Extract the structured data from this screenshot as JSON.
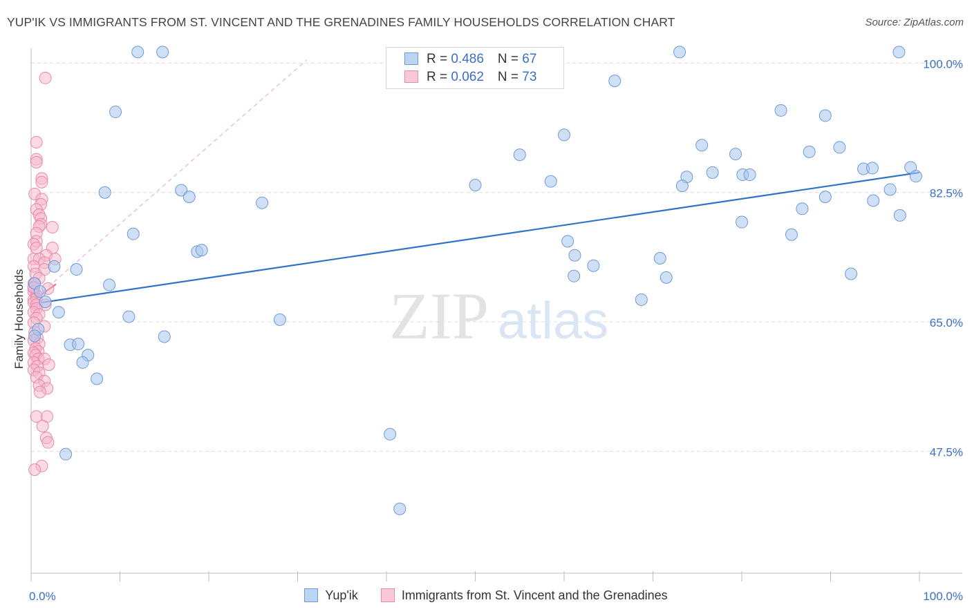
{
  "title": "YUP'IK VS IMMIGRANTS FROM ST. VINCENT AND THE GRENADINES FAMILY HOUSEHOLDS CORRELATION CHART",
  "source": "Source: ZipAtlas.com",
  "legend": {
    "series1": {
      "r_label": "R = ",
      "r_value": "0.486",
      "n_label": "N = ",
      "n_value": "67"
    },
    "series2": {
      "r_label": "R = ",
      "r_value": "0.062",
      "n_label": "N = ",
      "n_value": "73"
    }
  },
  "colors": {
    "blue": "#a8c6ee",
    "blue_edge": "#6d9ad8",
    "blue_line": "#2f72c9",
    "pink": "#f7b6cc",
    "pink_edge": "#e889a8",
    "pink_line": "#e8668f",
    "axis_text": "#3a6fc4"
  },
  "chart_data": {
    "type": "scatter",
    "title": "YUP'IK VS IMMIGRANTS FROM ST. VINCENT AND THE GRENADINES FAMILY HOUSEHOLDS CORRELATION CHART",
    "xlabel": "",
    "ylabel": "Family Households",
    "xlim": [
      0,
      100
    ],
    "ylim": [
      31,
      102
    ],
    "x_ticks": [
      "0.0%",
      "100.0%"
    ],
    "y_ticks": [
      {
        "value": 100,
        "label": "100.0%"
      },
      {
        "value": 82.5,
        "label": "82.5%"
      },
      {
        "value": 65,
        "label": "65.0%"
      },
      {
        "value": 47.5,
        "label": "47.5%"
      }
    ],
    "grid": true,
    "legend_position": "top-center",
    "series": [
      {
        "name": "Yup'ik",
        "points": [
          [
            12.0,
            101.5
          ],
          [
            14.8,
            101.5
          ],
          [
            73.0,
            101.5
          ],
          [
            97.7,
            101.5
          ],
          [
            9.5,
            93.4
          ],
          [
            65.7,
            97.6
          ],
          [
            84.4,
            93.6
          ],
          [
            89.4,
            92.9
          ],
          [
            60.0,
            90.3
          ],
          [
            55.0,
            87.6
          ],
          [
            75.5,
            88.9
          ],
          [
            79.3,
            87.7
          ],
          [
            91.0,
            88.6
          ],
          [
            87.6,
            88.0
          ],
          [
            99.0,
            85.9
          ],
          [
            93.7,
            85.7
          ],
          [
            94.7,
            85.8
          ],
          [
            99.6,
            84.7
          ],
          [
            73.8,
            84.6
          ],
          [
            76.7,
            85.2
          ],
          [
            80.1,
            84.9
          ],
          [
            80.9,
            84.9
          ],
          [
            50.0,
            83.5
          ],
          [
            58.5,
            84.0
          ],
          [
            73.3,
            83.4
          ],
          [
            89.4,
            81.9
          ],
          [
            94.8,
            81.4
          ],
          [
            96.7,
            82.9
          ],
          [
            8.3,
            82.5
          ],
          [
            16.9,
            82.8
          ],
          [
            17.8,
            81.9
          ],
          [
            26.0,
            81.1
          ],
          [
            86.8,
            80.3
          ],
          [
            97.8,
            79.4
          ],
          [
            80.0,
            78.5
          ],
          [
            85.6,
            76.8
          ],
          [
            11.5,
            76.9
          ],
          [
            60.4,
            75.9
          ],
          [
            18.7,
            74.5
          ],
          [
            19.2,
            74.7
          ],
          [
            61.2,
            74.0
          ],
          [
            70.8,
            73.6
          ],
          [
            63.3,
            72.6
          ],
          [
            2.6,
            72.5
          ],
          [
            5.1,
            72.1
          ],
          [
            61.1,
            71.2
          ],
          [
            71.5,
            71.0
          ],
          [
            92.3,
            71.5
          ],
          [
            0.4,
            70.2
          ],
          [
            8.8,
            70.0
          ],
          [
            1.0,
            69.1
          ],
          [
            1.6,
            67.7
          ],
          [
            3.1,
            66.3
          ],
          [
            11.0,
            65.7
          ],
          [
            28.0,
            65.3
          ],
          [
            68.7,
            68.0
          ],
          [
            0.8,
            64.0
          ],
          [
            0.4,
            63.1
          ],
          [
            4.4,
            61.9
          ],
          [
            5.3,
            62.0
          ],
          [
            6.4,
            60.5
          ],
          [
            5.8,
            59.5
          ],
          [
            7.4,
            57.3
          ],
          [
            40.4,
            49.8
          ],
          [
            3.9,
            47.1
          ],
          [
            41.5,
            39.7
          ],
          [
            15.0,
            63.0
          ]
        ]
      },
      {
        "name": "Immigrants from St. Vincent and the Grenadines",
        "points": [
          [
            1.6,
            98.0
          ],
          [
            0.6,
            89.3
          ],
          [
            0.6,
            87.0
          ],
          [
            0.6,
            86.6
          ],
          [
            1.2,
            84.4
          ],
          [
            1.2,
            83.9
          ],
          [
            0.4,
            82.3
          ],
          [
            1.2,
            81.6
          ],
          [
            1.1,
            80.9
          ],
          [
            0.6,
            80.2
          ],
          [
            0.9,
            79.5
          ],
          [
            1.1,
            79.0
          ],
          [
            1.1,
            78.2
          ],
          [
            0.9,
            77.9
          ],
          [
            2.4,
            77.8
          ],
          [
            0.6,
            77.0
          ],
          [
            0.6,
            75.9
          ],
          [
            0.3,
            75.5
          ],
          [
            0.6,
            75.0
          ],
          [
            2.4,
            75.0
          ],
          [
            1.7,
            74.0
          ],
          [
            0.3,
            73.5
          ],
          [
            0.9,
            73.5
          ],
          [
            1.5,
            73.0
          ],
          [
            2.7,
            73.5
          ],
          [
            0.3,
            72.5
          ],
          [
            1.5,
            72.1
          ],
          [
            0.5,
            71.5
          ],
          [
            0.9,
            70.9
          ],
          [
            0.3,
            70.2
          ],
          [
            0.3,
            69.6
          ],
          [
            0.3,
            69.1
          ],
          [
            0.6,
            68.6
          ],
          [
            0.3,
            68.0
          ],
          [
            1.9,
            69.5
          ],
          [
            0.6,
            68.1
          ],
          [
            0.3,
            67.6
          ],
          [
            0.6,
            67.3
          ],
          [
            1.6,
            67.3
          ],
          [
            0.6,
            66.8
          ],
          [
            0.3,
            66.3
          ],
          [
            0.9,
            66.0
          ],
          [
            0.6,
            65.5
          ],
          [
            0.3,
            64.9
          ],
          [
            1.5,
            64.4
          ],
          [
            0.4,
            63.6
          ],
          [
            0.7,
            62.8
          ],
          [
            0.3,
            62.5
          ],
          [
            0.9,
            62.0
          ],
          [
            0.5,
            61.4
          ],
          [
            0.8,
            61.0
          ],
          [
            0.3,
            60.8
          ],
          [
            0.5,
            60.5
          ],
          [
            0.8,
            60.0
          ],
          [
            1.5,
            60.0
          ],
          [
            0.3,
            59.5
          ],
          [
            0.7,
            59.0
          ],
          [
            0.3,
            58.5
          ],
          [
            0.9,
            58.1
          ],
          [
            0.6,
            57.5
          ],
          [
            1.5,
            57.0
          ],
          [
            0.9,
            56.4
          ],
          [
            1.8,
            56.0
          ],
          [
            0.6,
            52.2
          ],
          [
            1.8,
            52.2
          ],
          [
            1.3,
            50.9
          ],
          [
            1.7,
            49.3
          ],
          [
            1.9,
            48.7
          ],
          [
            1.2,
            45.5
          ],
          [
            0.4,
            45.0
          ],
          [
            2.0,
            59.2
          ],
          [
            1.0,
            55.5
          ],
          [
            0.3,
            69.7
          ]
        ]
      }
    ],
    "trendlines": [
      {
        "series": "Yup'ik",
        "x": [
          0,
          100
        ],
        "y": [
          67.4,
          85.2
        ]
      },
      {
        "series": "Immigrants from St. Vincent and the Grenadines",
        "x": [
          0,
          2.8
        ],
        "y": [
          67.7,
          70.1
        ],
        "extended_dashed": {
          "x": [
            0,
            31
          ],
          "y": [
            67.7,
            100.4
          ]
        }
      }
    ]
  },
  "watermark": {
    "part1": "ZIP",
    "part2": "atlas"
  },
  "bottom_legend": [
    "Yup'ik",
    "Immigrants from St. Vincent and the Grenadines"
  ]
}
